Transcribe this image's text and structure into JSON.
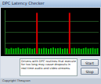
{
  "window": {
    "title": "DPC Latency Checker",
    "message": "Drivers with DPC routines that execute for too long may cause dropouts in real-time audio and video streams.",
    "buttons": [
      "Start",
      "Stop"
    ],
    "footer": "Copyright Thesycon"
  },
  "chart_data": {
    "type": "bar",
    "categories": [
      null,
      null,
      null,
      null,
      null,
      null,
      null,
      null,
      null,
      null,
      null,
      null,
      null,
      null,
      null,
      null,
      null,
      null,
      null,
      null,
      null,
      null,
      null,
      null,
      null,
      null,
      null,
      null,
      null,
      null,
      null,
      null,
      null,
      null,
      null,
      null,
      null,
      null,
      null,
      null
    ],
    "values": [
      2000,
      1800,
      2100,
      1900,
      2000,
      2200,
      1800,
      2000,
      1900,
      2100,
      2000,
      1800,
      2000,
      15000,
      2000,
      1900,
      2100,
      2000,
      1800,
      2000,
      2200,
      1900,
      2000,
      2100,
      1800,
      2000,
      1900,
      15000,
      2000,
      2100,
      1900,
      2000,
      1800,
      2000,
      2200,
      1900,
      2000,
      2100,
      1900,
      2000
    ],
    "colors": [
      "#00c000",
      "#00c000",
      "#00c000",
      "#00c000",
      "#00c000",
      "#00c000",
      "#00c000",
      "#00c000",
      "#00c000",
      "#00c000",
      "#00c000",
      "#00c000",
      "#00c000",
      "#e00000",
      "#00c000",
      "#00c000",
      "#00c000",
      "#00c000",
      "#00c000",
      "#00c000",
      "#00c000",
      "#00c000",
      "#00c000",
      "#00c000",
      "#00c000",
      "#00c000",
      "#00c000",
      "#e00000",
      "#00c000",
      "#00c000",
      "#00c000",
      "#00c000",
      "#00c000",
      "#00c000",
      "#00c000",
      "#00c000",
      "#00c000",
      "#00c000",
      "#00c000",
      "#00c000"
    ],
    "ylim": [
      0,
      16000
    ],
    "yticks": [
      0,
      4000,
      8000,
      12000,
      16000
    ],
    "grid": true,
    "tick_labels": false
  }
}
